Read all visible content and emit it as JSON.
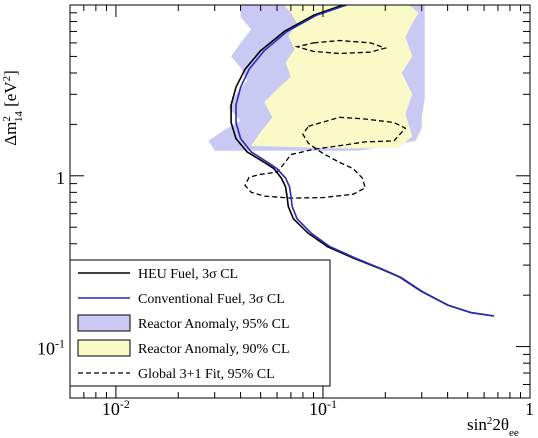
{
  "chart_data": {
    "type": "line",
    "x_scale": "log",
    "y_scale": "log",
    "xlim": [
      0.006,
      1.0
    ],
    "ylim": [
      0.05,
      10.0
    ],
    "x_ticks": [
      {
        "value": 0.01,
        "base": "10",
        "exp": "-2"
      },
      {
        "value": 0.1,
        "base": "10",
        "exp": "-1"
      },
      {
        "value": 1.0,
        "base": "1",
        "exp": ""
      }
    ],
    "y_ticks": [
      {
        "value": 0.1,
        "base": "10",
        "exp": "-1"
      },
      {
        "value": 1.0,
        "base": "1",
        "exp": ""
      }
    ],
    "xlabel": {
      "main": "sin",
      "sup": "2",
      "rest": "2θ",
      "sub": "ee"
    },
    "ylabel": {
      "main": "Δm",
      "sup": "2",
      "sub": "14",
      "units": " [eV",
      "units_sup": "2",
      "units_close": "]"
    },
    "legend": {
      "placement": "bottom-left",
      "entries": [
        {
          "label": "HEU Fuel, 3σ CL",
          "style": "line",
          "color": "#000000"
        },
        {
          "label": "Conventional Fuel, 3σ CL",
          "style": "line",
          "color": "#2a2ab8"
        },
        {
          "label": "Reactor Anomaly, 95% CL",
          "style": "fill",
          "color": "#c9c9f4"
        },
        {
          "label": "Reactor Anomaly, 90% CL",
          "style": "fill",
          "color": "#fafac8"
        },
        {
          "label": "Global 3+1 Fit,  95% CL",
          "style": "dashed",
          "color": "#000000"
        }
      ]
    },
    "series": [
      {
        "name": "HEU Fuel, 3σ CL",
        "color": "#000000",
        "points": [
          [
            0.125,
            10
          ],
          [
            0.09,
            8.7
          ],
          [
            0.065,
            7.0
          ],
          [
            0.05,
            5.4
          ],
          [
            0.042,
            4.2
          ],
          [
            0.038,
            3.3
          ],
          [
            0.036,
            2.6
          ],
          [
            0.036,
            2.05
          ],
          [
            0.038,
            1.65
          ],
          [
            0.043,
            1.38
          ],
          [
            0.052,
            1.2
          ],
          [
            0.058,
            1.1
          ],
          [
            0.063,
            0.97
          ],
          [
            0.066,
            0.86
          ],
          [
            0.067,
            0.76
          ],
          [
            0.068,
            0.66
          ],
          [
            0.072,
            0.56
          ],
          [
            0.085,
            0.46
          ],
          [
            0.105,
            0.385
          ],
          [
            0.14,
            0.33
          ],
          [
            0.19,
            0.285
          ],
          [
            0.235,
            0.255
          ],
          [
            0.3,
            0.21
          ],
          [
            0.4,
            0.175
          ],
          [
            0.52,
            0.158
          ],
          [
            0.67,
            0.151
          ]
        ]
      },
      {
        "name": "Conventional Fuel, 3σ CL",
        "color": "#2a2ab8",
        "points": [
          [
            0.13,
            10
          ],
          [
            0.093,
            8.7
          ],
          [
            0.067,
            7.0
          ],
          [
            0.052,
            5.4
          ],
          [
            0.044,
            4.2
          ],
          [
            0.04,
            3.3
          ],
          [
            0.038,
            2.6
          ],
          [
            0.038,
            2.05
          ],
          [
            0.04,
            1.65
          ],
          [
            0.045,
            1.38
          ],
          [
            0.054,
            1.2
          ],
          [
            0.06,
            1.1
          ],
          [
            0.066,
            0.97
          ],
          [
            0.069,
            0.86
          ],
          [
            0.07,
            0.76
          ],
          [
            0.071,
            0.66
          ],
          [
            0.075,
            0.56
          ],
          [
            0.088,
            0.46
          ],
          [
            0.108,
            0.385
          ],
          [
            0.143,
            0.33
          ],
          [
            0.192,
            0.285
          ],
          [
            0.237,
            0.255
          ],
          [
            0.302,
            0.21
          ],
          [
            0.402,
            0.175
          ],
          [
            0.522,
            0.158
          ],
          [
            0.67,
            0.151
          ]
        ]
      }
    ],
    "regions": [
      {
        "name": "Reactor Anomaly, 95% CL",
        "color": "#c9c9f4",
        "points": [
          [
            0.04,
            10
          ],
          [
            0.31,
            10
          ],
          [
            0.31,
            2.8
          ],
          [
            0.3,
            2.2
          ],
          [
            0.3,
            1.9
          ],
          [
            0.28,
            1.6
          ],
          [
            0.15,
            1.4
          ],
          [
            0.03,
            1.4
          ],
          [
            0.028,
            1.6
          ],
          [
            0.032,
            1.8
          ],
          [
            0.04,
            2.1
          ],
          [
            0.035,
            2.5
          ],
          [
            0.038,
            3.0
          ],
          [
            0.043,
            3.6
          ],
          [
            0.04,
            4.3
          ],
          [
            0.036,
            5.0
          ],
          [
            0.04,
            6.0
          ],
          [
            0.045,
            7.2
          ],
          [
            0.04,
            8.5
          ]
        ]
      },
      {
        "name": "Reactor Anomaly, 90% CL",
        "color": "#fafac8",
        "points": [
          [
            0.065,
            10
          ],
          [
            0.26,
            10
          ],
          [
            0.29,
            9.0
          ],
          [
            0.27,
            7.8
          ],
          [
            0.25,
            6.5
          ],
          [
            0.27,
            5.0
          ],
          [
            0.24,
            4.0
          ],
          [
            0.27,
            3.0
          ],
          [
            0.25,
            2.3
          ],
          [
            0.27,
            1.7
          ],
          [
            0.23,
            1.45
          ],
          [
            0.11,
            1.45
          ],
          [
            0.045,
            1.5
          ],
          [
            0.05,
            1.8
          ],
          [
            0.057,
            2.2
          ],
          [
            0.052,
            2.7
          ],
          [
            0.06,
            3.2
          ],
          [
            0.07,
            3.8
          ],
          [
            0.066,
            4.6
          ],
          [
            0.073,
            5.5
          ],
          [
            0.068,
            6.6
          ],
          [
            0.075,
            7.8
          ],
          [
            0.07,
            9.0
          ]
        ]
      }
    ],
    "contours": [
      {
        "name": "Global 3+1 Fit,  95% CL",
        "color": "#000000",
        "dash": "dashed",
        "points": [
          [
            0.09,
            6.0
          ],
          [
            0.12,
            6.2
          ],
          [
            0.17,
            6.0
          ],
          [
            0.2,
            5.6
          ],
          [
            0.17,
            5.3
          ],
          [
            0.12,
            5.2
          ],
          [
            0.09,
            5.35
          ],
          [
            0.075,
            5.7
          ]
        ]
      },
      {
        "name": "Global 3+1 Fit,  95% CL",
        "color": "#000000",
        "dash": "dashed",
        "points": [
          [
            0.085,
            1.95
          ],
          [
            0.12,
            2.2
          ],
          [
            0.16,
            2.15
          ],
          [
            0.22,
            2.05
          ],
          [
            0.25,
            1.9
          ],
          [
            0.22,
            1.6
          ],
          [
            0.16,
            1.58
          ],
          [
            0.12,
            1.5
          ],
          [
            0.09,
            1.43
          ],
          [
            0.07,
            1.33
          ],
          [
            0.065,
            1.18
          ],
          [
            0.06,
            1.05
          ],
          [
            0.05,
            1.02
          ],
          [
            0.044,
            0.98
          ],
          [
            0.042,
            0.88
          ],
          [
            0.045,
            0.8
          ],
          [
            0.052,
            0.76
          ],
          [
            0.07,
            0.74
          ],
          [
            0.1,
            0.745
          ],
          [
            0.14,
            0.78
          ],
          [
            0.16,
            0.85
          ],
          [
            0.155,
            0.97
          ],
          [
            0.14,
            1.1
          ],
          [
            0.12,
            1.2
          ],
          [
            0.1,
            1.35
          ],
          [
            0.085,
            1.55
          ],
          [
            0.08,
            1.75
          ]
        ]
      }
    ]
  }
}
